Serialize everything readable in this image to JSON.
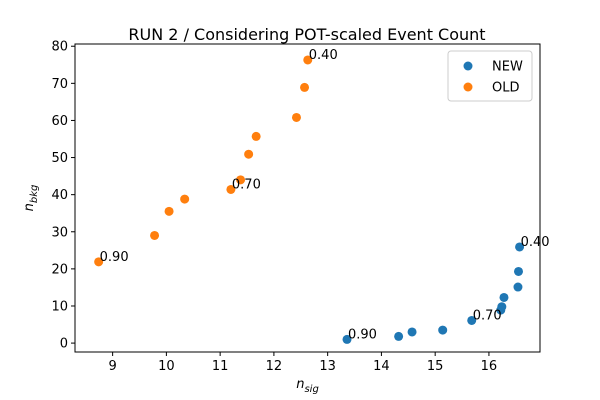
{
  "chart_data": {
    "type": "scatter",
    "title": "RUN 2 / Considering POT-scaled Event Count",
    "xlabel": {
      "base": "n",
      "sub": "sig"
    },
    "ylabel": {
      "base": "n",
      "sub": "bkg"
    },
    "xlim": [
      8.3,
      16.95
    ],
    "ylim": [
      -2.4,
      80.6
    ],
    "xticks": [
      9,
      10,
      11,
      12,
      13,
      14,
      15,
      16
    ],
    "yticks": [
      0,
      10,
      20,
      30,
      40,
      50,
      60,
      70,
      80
    ],
    "grid": false,
    "legend": {
      "position": "top-right"
    },
    "series": [
      {
        "name": "NEW",
        "color": "#1f77b4",
        "points": [
          [
            13.36,
            1.0
          ],
          [
            14.32,
            1.8
          ],
          [
            14.57,
            3.0
          ],
          [
            15.14,
            3.5
          ],
          [
            15.68,
            6.1
          ],
          [
            16.22,
            8.9
          ],
          [
            16.24,
            9.8
          ],
          [
            16.28,
            12.3
          ],
          [
            16.54,
            15.1
          ],
          [
            16.55,
            19.3
          ],
          [
            16.57,
            25.9
          ]
        ]
      },
      {
        "name": "OLD",
        "color": "#ff7f0e",
        "points": [
          [
            8.74,
            21.9
          ],
          [
            9.78,
            29.0
          ],
          [
            10.05,
            35.5
          ],
          [
            10.34,
            38.8
          ],
          [
            11.2,
            41.4
          ],
          [
            11.38,
            44.0
          ],
          [
            11.53,
            50.9
          ],
          [
            11.67,
            55.7
          ],
          [
            12.42,
            60.8
          ],
          [
            12.57,
            68.9
          ],
          [
            12.63,
            76.3
          ]
        ]
      }
    ],
    "annotations": [
      {
        "text": "0.90",
        "x": 13.36,
        "y": 1.0
      },
      {
        "text": "0.70",
        "x": 15.68,
        "y": 6.1
      },
      {
        "text": "0.40",
        "x": 16.57,
        "y": 25.9
      },
      {
        "text": "0.90",
        "x": 8.74,
        "y": 21.9
      },
      {
        "text": "0.70",
        "x": 11.2,
        "y": 41.4
      },
      {
        "text": "0.40",
        "x": 12.63,
        "y": 76.3
      }
    ]
  }
}
